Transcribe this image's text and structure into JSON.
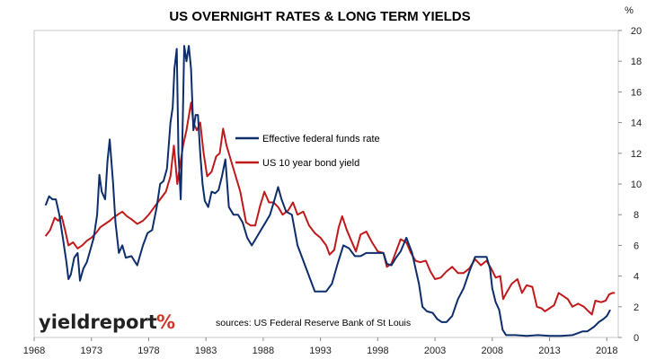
{
  "chart_data": {
    "type": "line",
    "title": "US OVERNIGHT RATES & LONG TERM YIELDS",
    "y_unit": "%",
    "xlim": [
      1968,
      2019
    ],
    "ylim": [
      0,
      20
    ],
    "x_ticks": [
      "1968",
      "1973",
      "1978",
      "1983",
      "1988",
      "1993",
      "1998",
      "2003",
      "2008",
      "2013",
      "2018"
    ],
    "y_ticks": [
      "0",
      "2",
      "4",
      "6",
      "8",
      "10",
      "12",
      "14",
      "16",
      "18",
      "20"
    ],
    "legend_position": "upper-center",
    "grid": false,
    "source_text": "sources: US Federal Reserve Bank of St Louis",
    "logo": {
      "text": "yieldreport",
      "mark": "%",
      "mark_color": "#d1342a"
    },
    "series": [
      {
        "name": "Effective federal funds rate",
        "color": "#0d2d6b",
        "x": [
          1969.0,
          1969.3,
          1969.6,
          1969.9,
          1970.2,
          1970.5,
          1970.8,
          1971.0,
          1971.2,
          1971.5,
          1971.8,
          1972.0,
          1972.3,
          1972.6,
          1972.9,
          1973.2,
          1973.5,
          1973.7,
          1973.9,
          1974.2,
          1974.4,
          1974.6,
          1974.9,
          1975.1,
          1975.4,
          1975.7,
          1976.0,
          1976.5,
          1977.0,
          1977.5,
          1977.9,
          1978.3,
          1978.7,
          1979.0,
          1979.3,
          1979.6,
          1979.9,
          1980.1,
          1980.25,
          1980.45,
          1980.6,
          1980.8,
          1980.95,
          1981.1,
          1981.3,
          1981.5,
          1981.7,
          1981.9,
          1982.1,
          1982.3,
          1982.5,
          1982.7,
          1982.9,
          1983.2,
          1983.5,
          1983.8,
          1984.1,
          1984.4,
          1984.7,
          1985.0,
          1985.4,
          1985.8,
          1986.2,
          1986.6,
          1987.0,
          1987.4,
          1987.8,
          1988.2,
          1988.6,
          1989.0,
          1989.3,
          1989.6,
          1990.0,
          1990.5,
          1991.0,
          1991.5,
          1992.0,
          1992.5,
          1993.0,
          1993.5,
          1994.0,
          1994.5,
          1995.0,
          1995.5,
          1996.0,
          1996.5,
          1997.0,
          1997.5,
          1998.0,
          1998.5,
          1998.8,
          1999.2,
          1999.6,
          2000.0,
          2000.5,
          2001.0,
          2001.3,
          2001.6,
          2001.9,
          2002.3,
          2002.8,
          2003.2,
          2003.6,
          2004.0,
          2004.5,
          2005.0,
          2005.5,
          2006.0,
          2006.5,
          2007.0,
          2007.5,
          2007.8,
          2008.0,
          2008.3,
          2008.6,
          2008.9,
          2009.2,
          2010.0,
          2011.0,
          2012.0,
          2013.0,
          2014.0,
          2015.0,
          2015.9,
          2016.3,
          2016.9,
          2017.3,
          2017.7,
          2018.0,
          2018.3
        ],
        "values": [
          8.6,
          9.2,
          9.0,
          9.0,
          8.0,
          6.5,
          5.0,
          3.8,
          4.1,
          5.2,
          5.5,
          3.7,
          4.5,
          4.9,
          5.7,
          6.5,
          8.0,
          10.6,
          9.5,
          9.0,
          11.5,
          12.9,
          10.0,
          7.5,
          5.5,
          6.0,
          5.2,
          5.3,
          4.7,
          6.0,
          6.8,
          7.0,
          8.5,
          10.0,
          10.2,
          11.0,
          14.0,
          15.0,
          17.5,
          18.8,
          12.0,
          9.0,
          13.0,
          19.0,
          18.0,
          19.0,
          17.5,
          13.5,
          14.5,
          14.5,
          12.0,
          10.0,
          8.9,
          8.5,
          9.5,
          9.4,
          9.6,
          10.5,
          11.6,
          8.5,
          8.0,
          8.0,
          7.5,
          6.5,
          6.0,
          6.5,
          7.0,
          7.5,
          8.0,
          9.0,
          9.8,
          9.0,
          8.2,
          8.0,
          6.0,
          5.0,
          4.0,
          3.0,
          3.0,
          3.0,
          3.5,
          4.8,
          6.0,
          5.8,
          5.3,
          5.3,
          5.5,
          5.5,
          5.5,
          5.5,
          4.8,
          4.7,
          5.2,
          5.6,
          6.5,
          5.5,
          4.5,
          3.5,
          2.0,
          1.7,
          1.6,
          1.2,
          1.0,
          1.0,
          1.4,
          2.5,
          3.2,
          4.3,
          5.25,
          5.25,
          5.25,
          4.5,
          3.2,
          2.3,
          1.8,
          0.5,
          0.15,
          0.15,
          0.1,
          0.15,
          0.1,
          0.1,
          0.15,
          0.4,
          0.4,
          0.7,
          1.0,
          1.2,
          1.4,
          1.8
        ]
      },
      {
        "name": "US 10 year bond yield",
        "color": "#c0191c",
        "x": [
          1969.0,
          1969.4,
          1969.8,
          1970.1,
          1970.4,
          1970.7,
          1971.0,
          1971.4,
          1971.8,
          1972.2,
          1972.6,
          1973.0,
          1973.4,
          1973.8,
          1974.2,
          1974.6,
          1974.9,
          1975.3,
          1975.7,
          1976.1,
          1976.5,
          1977.0,
          1977.5,
          1978.0,
          1978.5,
          1979.0,
          1979.5,
          1979.9,
          1980.2,
          1980.5,
          1980.8,
          1981.0,
          1981.3,
          1981.7,
          1981.9,
          1982.2,
          1982.5,
          1982.8,
          1983.1,
          1983.5,
          1983.9,
          1984.2,
          1984.5,
          1984.8,
          1985.2,
          1985.6,
          1986.0,
          1986.5,
          1986.9,
          1987.3,
          1987.7,
          1988.1,
          1988.5,
          1988.9,
          1989.3,
          1989.7,
          1990.2,
          1990.6,
          1991.0,
          1991.5,
          1992.0,
          1992.5,
          1993.0,
          1993.5,
          1993.8,
          1994.2,
          1994.6,
          1994.9,
          1995.3,
          1995.7,
          1996.1,
          1996.5,
          1997.0,
          1997.5,
          1998.0,
          1998.5,
          1998.8,
          1999.2,
          1999.6,
          2000.0,
          2000.5,
          2000.9,
          2001.3,
          2001.7,
          2002.2,
          2002.6,
          2003.0,
          2003.5,
          2004.0,
          2004.5,
          2005.0,
          2005.5,
          2006.0,
          2006.5,
          2007.0,
          2007.5,
          2007.9,
          2008.3,
          2008.7,
          2008.95,
          2009.3,
          2009.7,
          2010.2,
          2010.6,
          2011.0,
          2011.5,
          2011.9,
          2012.3,
          2012.6,
          2013.0,
          2013.4,
          2013.8,
          2014.2,
          2014.6,
          2015.0,
          2015.5,
          2016.0,
          2016.4,
          2016.7,
          2017.0,
          2017.5,
          2017.9,
          2018.2,
          2018.5,
          2018.7
        ],
        "values": [
          6.6,
          7.0,
          7.8,
          7.6,
          7.9,
          7.0,
          6.0,
          6.2,
          5.8,
          6.0,
          6.3,
          6.5,
          6.8,
          7.2,
          7.4,
          7.6,
          7.8,
          8.0,
          8.2,
          7.9,
          7.7,
          7.4,
          7.6,
          8.0,
          8.5,
          9.0,
          9.5,
          10.5,
          12.5,
          10.0,
          11.5,
          12.5,
          13.5,
          15.3,
          14.0,
          13.5,
          14.0,
          12.0,
          10.5,
          10.8,
          11.8,
          12.0,
          13.6,
          12.5,
          11.5,
          10.5,
          9.5,
          7.5,
          7.3,
          7.3,
          8.5,
          9.5,
          8.8,
          8.8,
          8.5,
          8.0,
          8.3,
          8.8,
          8.0,
          8.2,
          7.3,
          6.8,
          6.5,
          6.0,
          5.4,
          5.7,
          7.2,
          7.9,
          7.0,
          6.3,
          5.6,
          6.7,
          6.9,
          6.2,
          5.6,
          5.5,
          4.6,
          4.8,
          5.6,
          6.4,
          6.2,
          5.5,
          5.0,
          4.9,
          5.0,
          4.3,
          3.8,
          3.9,
          4.3,
          4.6,
          4.2,
          4.2,
          4.5,
          5.1,
          4.7,
          5.0,
          4.5,
          3.9,
          4.0,
          2.5,
          3.0,
          3.5,
          3.8,
          2.9,
          3.4,
          3.3,
          2.0,
          1.9,
          1.7,
          1.9,
          2.1,
          2.9,
          2.7,
          2.5,
          2.0,
          2.2,
          2.0,
          1.7,
          1.5,
          2.4,
          2.3,
          2.4,
          2.8,
          2.9,
          2.9
        ]
      }
    ]
  }
}
